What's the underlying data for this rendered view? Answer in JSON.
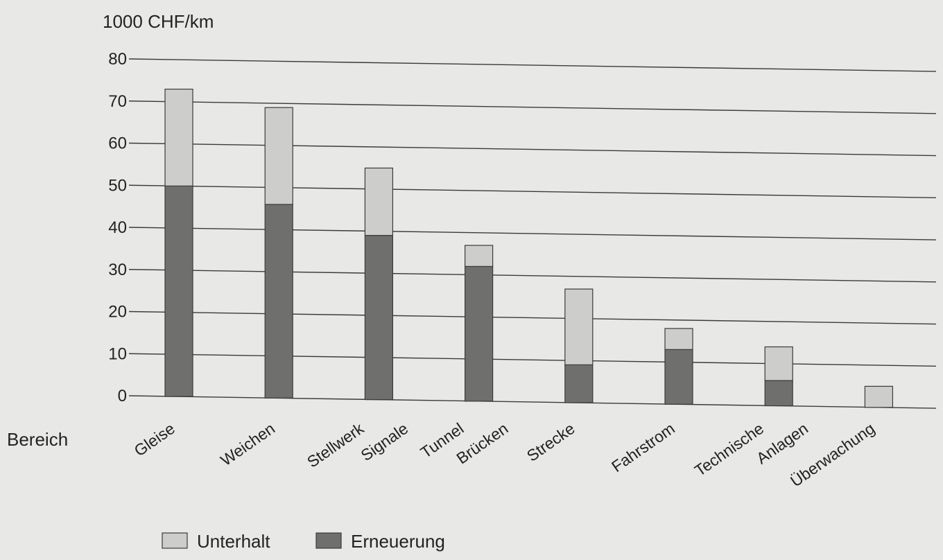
{
  "chart_data": {
    "type": "bar",
    "stacked": true,
    "unit_label": "1000 CHF/km",
    "xlabel": "Bereich",
    "ylim": [
      0,
      80
    ],
    "yticks": [
      0,
      10,
      20,
      30,
      40,
      50,
      60,
      70,
      80
    ],
    "grid": true,
    "categories": [
      "Gleise",
      "Weichen",
      "Stellwerk Signale",
      "Tunnel Brücken",
      "Strecke",
      "Fahrstrom",
      "Technische Anlagen",
      "Überwachung"
    ],
    "category_lines": [
      [
        "Gleise"
      ],
      [
        "Weichen"
      ],
      [
        "Stellwerk",
        "Signale"
      ],
      [
        "Tunnel",
        "Brücken"
      ],
      [
        "Strecke"
      ],
      [
        "Fahrstrom"
      ],
      [
        "Technische",
        "Anlagen"
      ],
      [
        "Überwachung"
      ]
    ],
    "series": [
      {
        "name": "Erneuerung",
        "values": [
          50,
          46,
          39,
          32,
          9,
          13,
          6,
          0
        ]
      },
      {
        "name": "Unterhalt",
        "values": [
          23,
          23,
          16,
          5,
          18,
          5,
          8,
          5
        ]
      }
    ],
    "legend": {
      "placement": "bottom",
      "order": [
        "Unterhalt",
        "Erneuerung"
      ]
    },
    "colors": {
      "Unterhalt": "#cdcdcb",
      "Erneuerung": "#6f706e",
      "grid": "#3a3a3a",
      "bar_outline": "#3a3a3a",
      "background": "#e8e8e6"
    }
  }
}
